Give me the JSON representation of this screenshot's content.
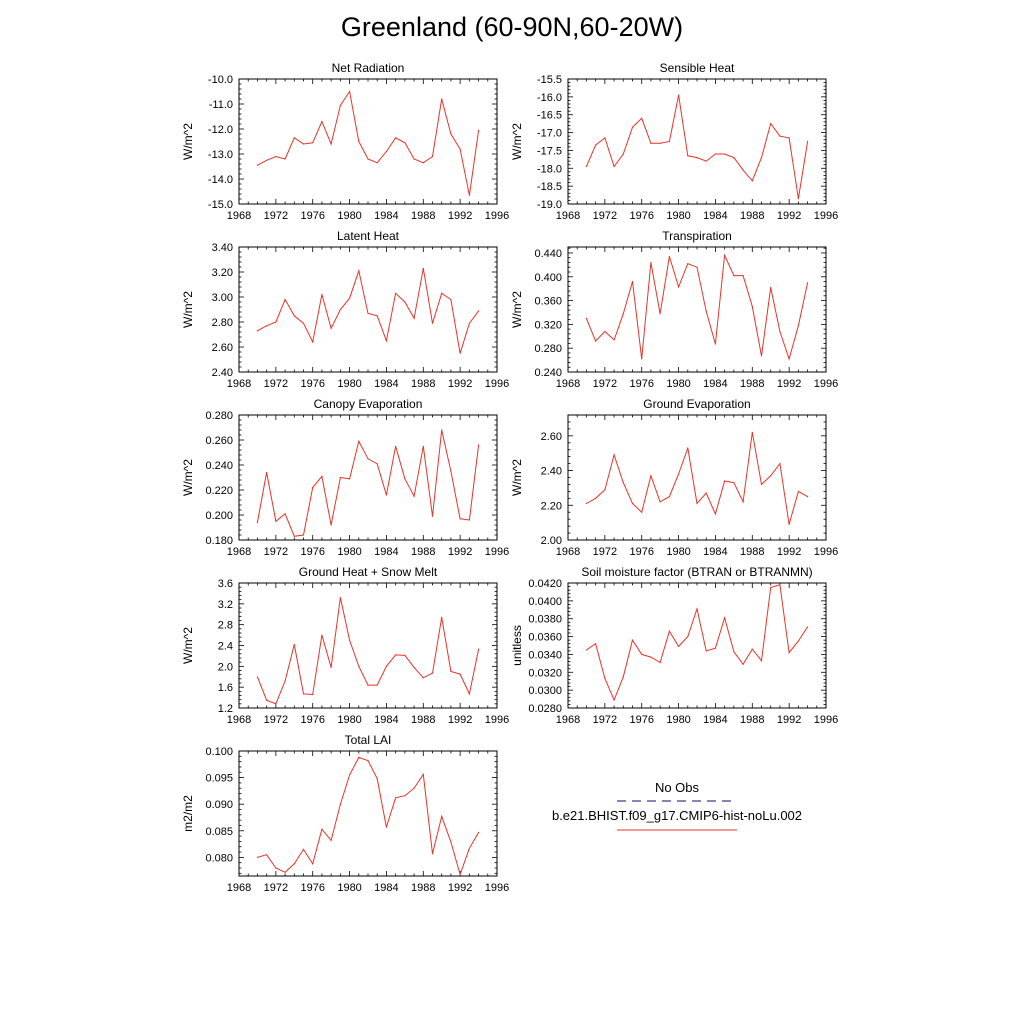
{
  "title": "Greenland (60-90N,60-20W)",
  "legend": {
    "entries": [
      {
        "label": "No Obs",
        "color": "#3c3c8c",
        "style": "dashed"
      },
      {
        "label": "b.e21.BHIST.f09_g17.CMIP6-hist-noLu.002",
        "color": "#e8332a",
        "style": "solid"
      }
    ]
  },
  "line_color": "#e8332a",
  "chart_data": [
    {
      "type": "line",
      "title": "Net Radiation",
      "ylabel": "W/m^2",
      "xlim": [
        1968,
        1996
      ],
      "ylim": [
        -15.0,
        -10.0
      ],
      "xticks": [
        "1968",
        "1972",
        "1976",
        "1980",
        "1984",
        "1988",
        "1992",
        "1996"
      ],
      "yticks": [
        "-15.0",
        "-14.0",
        "-13.0",
        "-12.0",
        "-11.0",
        "-10.0"
      ],
      "x": [
        1970,
        1971,
        1972,
        1973,
        1974,
        1975,
        1976,
        1977,
        1978,
        1979,
        1980,
        1981,
        1982,
        1983,
        1984,
        1985,
        1986,
        1987,
        1988,
        1989,
        1990,
        1991,
        1992,
        1993,
        1994
      ],
      "series": [
        {
          "values": [
            -13.45,
            -13.25,
            -13.1,
            -13.2,
            -12.35,
            -12.6,
            -12.55,
            -11.7,
            -12.6,
            -11.05,
            -10.5,
            -12.5,
            -13.2,
            -13.35,
            -12.9,
            -12.35,
            -12.55,
            -13.2,
            -13.35,
            -13.1,
            -10.8,
            -12.2,
            -12.8,
            -14.65,
            -12.05
          ]
        }
      ]
    },
    {
      "type": "line",
      "title": "Sensible Heat",
      "ylabel": "W/m^2",
      "xlim": [
        1968,
        1996
      ],
      "ylim": [
        -19.0,
        -15.5
      ],
      "xticks": [
        "1968",
        "1972",
        "1976",
        "1980",
        "1984",
        "1988",
        "1992",
        "1996"
      ],
      "yticks": [
        "-19.0",
        "-18.5",
        "-18.0",
        "-17.5",
        "-17.0",
        "-16.5",
        "-16.0",
        "-15.5"
      ],
      "x": [
        1970,
        1971,
        1972,
        1973,
        1974,
        1975,
        1976,
        1977,
        1978,
        1979,
        1980,
        1981,
        1982,
        1983,
        1984,
        1985,
        1986,
        1987,
        1988,
        1989,
        1990,
        1991,
        1992,
        1993,
        1994
      ],
      "series": [
        {
          "values": [
            -17.95,
            -17.35,
            -17.15,
            -17.95,
            -17.6,
            -16.85,
            -16.6,
            -17.3,
            -17.3,
            -17.25,
            -15.95,
            -17.65,
            -17.7,
            -17.8,
            -17.6,
            -17.6,
            -17.7,
            -18.05,
            -18.35,
            -17.7,
            -16.75,
            -17.1,
            -17.15,
            -18.85,
            -17.25
          ]
        }
      ]
    },
    {
      "type": "line",
      "title": "Latent Heat",
      "ylabel": "W/m^2",
      "xlim": [
        1968,
        1996
      ],
      "ylim": [
        2.4,
        3.4
      ],
      "xticks": [
        "1968",
        "1972",
        "1976",
        "1980",
        "1984",
        "1988",
        "1992",
        "1996"
      ],
      "yticks": [
        "2.40",
        "2.60",
        "2.80",
        "3.00",
        "3.20",
        "3.40"
      ],
      "x": [
        1970,
        1971,
        1972,
        1973,
        1974,
        1975,
        1976,
        1977,
        1978,
        1979,
        1980,
        1981,
        1982,
        1983,
        1984,
        1985,
        1986,
        1987,
        1988,
        1989,
        1990,
        1991,
        1992,
        1993,
        1994
      ],
      "series": [
        {
          "values": [
            2.73,
            2.77,
            2.8,
            2.98,
            2.85,
            2.79,
            2.64,
            3.02,
            2.75,
            2.9,
            2.99,
            3.21,
            2.87,
            2.85,
            2.65,
            3.03,
            2.96,
            2.83,
            3.23,
            2.79,
            3.03,
            2.98,
            2.55,
            2.79,
            2.89
          ]
        }
      ]
    },
    {
      "type": "line",
      "title": "Transpiration",
      "ylabel": "W/m^2",
      "xlim": [
        1968,
        1996
      ],
      "ylim": [
        0.24,
        0.45
      ],
      "xticks": [
        "1968",
        "1972",
        "1976",
        "1980",
        "1984",
        "1988",
        "1992",
        "1996"
      ],
      "yticks": [
        "0.240",
        "0.280",
        "0.320",
        "0.360",
        "0.400",
        "0.440"
      ],
      "x": [
        1970,
        1971,
        1972,
        1973,
        1974,
        1975,
        1976,
        1977,
        1978,
        1979,
        1980,
        1981,
        1982,
        1983,
        1984,
        1985,
        1986,
        1987,
        1988,
        1989,
        1990,
        1991,
        1992,
        1993,
        1994
      ],
      "series": [
        {
          "values": [
            0.33,
            0.292,
            0.308,
            0.294,
            0.338,
            0.392,
            0.262,
            0.424,
            0.338,
            0.434,
            0.383,
            0.422,
            0.416,
            0.342,
            0.287,
            0.436,
            0.402,
            0.402,
            0.35,
            0.267,
            0.382,
            0.308,
            0.262,
            0.318,
            0.39
          ]
        }
      ]
    },
    {
      "type": "line",
      "title": "Canopy Evaporation",
      "ylabel": "W/m^2",
      "xlim": [
        1968,
        1996
      ],
      "ylim": [
        0.18,
        0.28
      ],
      "xticks": [
        "1968",
        "1972",
        "1976",
        "1980",
        "1984",
        "1988",
        "1992",
        "1996"
      ],
      "yticks": [
        "0.180",
        "0.200",
        "0.220",
        "0.240",
        "0.260",
        "0.280"
      ],
      "x": [
        1970,
        1971,
        1972,
        1973,
        1974,
        1975,
        1976,
        1977,
        1978,
        1979,
        1980,
        1981,
        1982,
        1983,
        1984,
        1985,
        1986,
        1987,
        1988,
        1989,
        1990,
        1991,
        1992,
        1993,
        1994
      ],
      "series": [
        {
          "values": [
            0.194,
            0.234,
            0.195,
            0.201,
            0.183,
            0.184,
            0.222,
            0.231,
            0.192,
            0.23,
            0.229,
            0.259,
            0.245,
            0.241,
            0.216,
            0.255,
            0.229,
            0.215,
            0.255,
            0.199,
            0.268,
            0.235,
            0.197,
            0.196,
            0.256
          ]
        }
      ]
    },
    {
      "type": "line",
      "title": "Ground Evaporation",
      "ylabel": "W/m^2",
      "xlim": [
        1968,
        1996
      ],
      "ylim": [
        2.0,
        2.72
      ],
      "xticks": [
        "1968",
        "1972",
        "1976",
        "1980",
        "1984",
        "1988",
        "1992",
        "1996"
      ],
      "yticks": [
        "2.00",
        "2.20",
        "2.40",
        "2.60"
      ],
      "x": [
        1970,
        1971,
        1972,
        1973,
        1974,
        1975,
        1976,
        1977,
        1978,
        1979,
        1980,
        1981,
        1982,
        1983,
        1984,
        1985,
        1986,
        1987,
        1988,
        1989,
        1990,
        1991,
        1992,
        1993,
        1994
      ],
      "series": [
        {
          "values": [
            2.21,
            2.24,
            2.29,
            2.49,
            2.33,
            2.21,
            2.16,
            2.37,
            2.22,
            2.25,
            2.38,
            2.53,
            2.21,
            2.27,
            2.15,
            2.34,
            2.33,
            2.22,
            2.62,
            2.32,
            2.37,
            2.44,
            2.09,
            2.28,
            2.25
          ]
        }
      ]
    },
    {
      "type": "line",
      "title": "Ground Heat + Snow Melt",
      "ylabel": "W/m^2",
      "xlim": [
        1968,
        1996
      ],
      "ylim": [
        1.2,
        3.6
      ],
      "xticks": [
        "1968",
        "1972",
        "1976",
        "1980",
        "1984",
        "1988",
        "1992",
        "1996"
      ],
      "yticks": [
        "1.2",
        "1.6",
        "2.0",
        "2.4",
        "2.8",
        "3.2",
        "3.6"
      ],
      "x": [
        1970,
        1971,
        1972,
        1973,
        1974,
        1975,
        1976,
        1977,
        1978,
        1979,
        1980,
        1981,
        1982,
        1983,
        1984,
        1985,
        1986,
        1987,
        1988,
        1989,
        1990,
        1991,
        1992,
        1993,
        1994
      ],
      "series": [
        {
          "values": [
            1.8,
            1.35,
            1.28,
            1.72,
            2.42,
            1.47,
            1.46,
            2.6,
            1.98,
            3.32,
            2.5,
            2.0,
            1.64,
            1.64,
            2.0,
            2.22,
            2.21,
            1.98,
            1.78,
            1.87,
            2.94,
            1.9,
            1.85,
            1.47,
            2.33
          ]
        }
      ]
    },
    {
      "type": "line",
      "title": "Soil moisture factor (BTRAN or BTRANMN)",
      "ylabel": "unitless",
      "xlim": [
        1968,
        1996
      ],
      "ylim": [
        0.028,
        0.042
      ],
      "xticks": [
        "1968",
        "1972",
        "1976",
        "1980",
        "1984",
        "1988",
        "1992",
        "1996"
      ],
      "yticks": [
        "0.0280",
        "0.0300",
        "0.0320",
        "0.0340",
        "0.0360",
        "0.0380",
        "0.0400",
        "0.0420"
      ],
      "x": [
        1970,
        1971,
        1972,
        1973,
        1974,
        1975,
        1976,
        1977,
        1978,
        1979,
        1980,
        1981,
        1982,
        1983,
        1984,
        1985,
        1986,
        1987,
        1988,
        1989,
        1990,
        1991,
        1992,
        1993,
        1994
      ],
      "series": [
        {
          "values": [
            0.0345,
            0.0352,
            0.0313,
            0.0289,
            0.0315,
            0.0356,
            0.034,
            0.0337,
            0.0331,
            0.0366,
            0.0349,
            0.036,
            0.0391,
            0.0344,
            0.0347,
            0.0381,
            0.0343,
            0.0329,
            0.0346,
            0.0333,
            0.0415,
            0.0418,
            0.0342,
            0.0355,
            0.0371
          ]
        }
      ]
    },
    {
      "type": "line",
      "title": "Total LAI",
      "ylabel": "m2/m2",
      "xlim": [
        1968,
        1996
      ],
      "ylim": [
        0.0765,
        0.1
      ],
      "xticks": [
        "1968",
        "1972",
        "1976",
        "1980",
        "1984",
        "1988",
        "1992",
        "1996"
      ],
      "yticks": [
        "0.080",
        "0.085",
        "0.090",
        "0.095",
        "0.100"
      ],
      "x": [
        1970,
        1971,
        1972,
        1973,
        1974,
        1975,
        1976,
        1977,
        1978,
        1979,
        1980,
        1981,
        1982,
        1983,
        1984,
        1985,
        1986,
        1987,
        1988,
        1989,
        1990,
        1991,
        1992,
        1993,
        1994
      ],
      "series": [
        {
          "values": [
            0.08,
            0.0805,
            0.078,
            0.0772,
            0.0788,
            0.0815,
            0.0788,
            0.0853,
            0.0832,
            0.09,
            0.0955,
            0.0988,
            0.0982,
            0.0948,
            0.0857,
            0.0912,
            0.0916,
            0.093,
            0.0956,
            0.0807,
            0.0877,
            0.0829,
            0.0768,
            0.0817,
            0.0847
          ]
        }
      ]
    }
  ]
}
